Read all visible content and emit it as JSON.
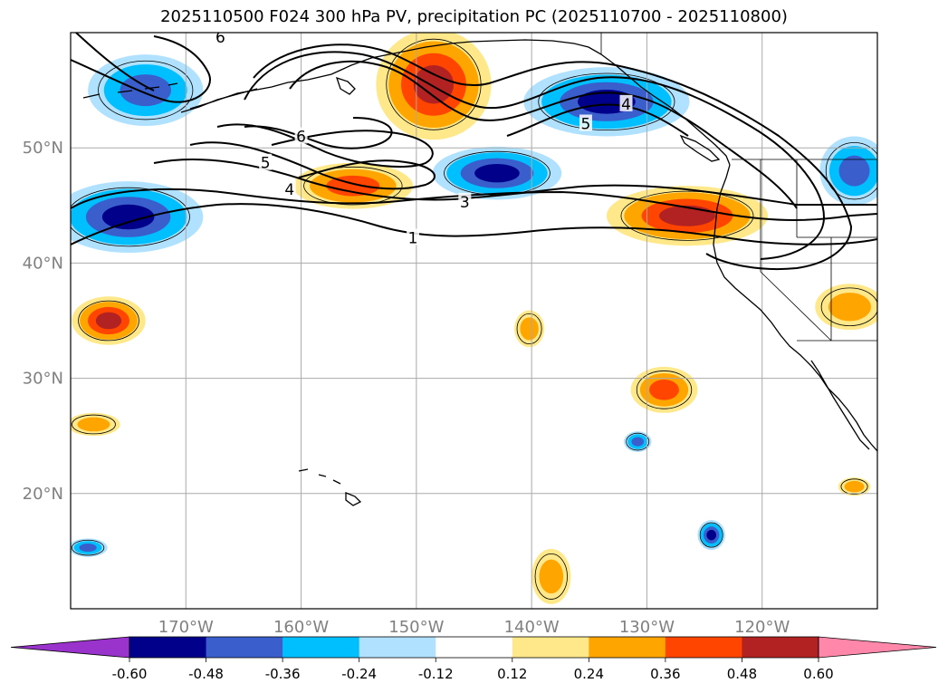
{
  "title": "2025110500 F024 300 hPa PV, precipitation PC (2025110700 - 2025110800)",
  "lat_labels": [
    {
      "lat": 50,
      "text": "50°N"
    },
    {
      "lat": 40,
      "text": "40°N"
    },
    {
      "lat": 30,
      "text": "30°N"
    },
    {
      "lat": 20,
      "text": "20°N"
    }
  ],
  "lon_labels": [
    {
      "lon": -170,
      "text": "170°W"
    },
    {
      "lon": -160,
      "text": "160°W"
    },
    {
      "lon": -150,
      "text": "150°W"
    },
    {
      "lon": -140,
      "text": "140°W"
    },
    {
      "lon": -130,
      "text": "130°W"
    },
    {
      "lon": -120,
      "text": "120°W"
    }
  ],
  "extent": {
    "lon_min": -180,
    "lon_max": -110,
    "lat_min": 10,
    "lat_max": 60
  },
  "colorbar": {
    "levels": [
      "-0.60",
      "-0.48",
      "-0.36",
      "-0.24",
      "-0.12",
      "0.12",
      "0.24",
      "0.36",
      "0.48",
      "0.60"
    ],
    "colors": [
      "#9a33cc",
      "#00008b",
      "#3a5fcd",
      "#00bfff",
      "#b0e2ff",
      "#ffffff",
      "#ffe88a",
      "#ffa500",
      "#ff4500",
      "#b22222",
      "#ff88aa"
    ]
  },
  "pv_contour_labels": [
    {
      "text": "1",
      "lon": -150.3,
      "lat": 42.2
    },
    {
      "text": "3",
      "lon": -145.8,
      "lat": 45.3
    },
    {
      "text": "4",
      "lon": -161.0,
      "lat": 46.4
    },
    {
      "text": "5",
      "lon": -163.1,
      "lat": 48.7
    },
    {
      "text": "6",
      "lon": -160.0,
      "lat": 51.0
    },
    {
      "text": "5",
      "lon": -135.3,
      "lat": 52.1
    },
    {
      "text": "4",
      "lon": -131.8,
      "lat": 53.8
    },
    {
      "text": "6",
      "lon": -167.0,
      "lat": 59.6
    }
  ],
  "precip_regions": [
    {
      "name": "aleutian-west-negative",
      "lon": -173.5,
      "lat": 55.0,
      "rx": 5.0,
      "ry": 3.1,
      "level": -0.36
    },
    {
      "name": "pacific-west-negative",
      "lon": -175.0,
      "lat": 44.0,
      "rx": 6.5,
      "ry": 3.1,
      "level": -0.48
    },
    {
      "name": "gulf-alaska-positive",
      "lon": -148.5,
      "lat": 55.5,
      "rx": 5.0,
      "ry": 4.8,
      "level": 0.48
    },
    {
      "name": "mid-pacific-positive",
      "lon": -155.5,
      "lat": 46.7,
      "rx": 5.2,
      "ry": 2.0,
      "level": 0.36
    },
    {
      "name": "mid-pacific-negative",
      "lon": -143.0,
      "lat": 47.8,
      "rx": 5.6,
      "ry": 2.3,
      "level": -0.48
    },
    {
      "name": "gulf-alaska-negative",
      "lon": -133.5,
      "lat": 54.0,
      "rx": 7.2,
      "ry": 3.0,
      "level": -0.48
    },
    {
      "name": "oregon-offshore-positive",
      "lon": -126.5,
      "lat": 44.1,
      "rx": 7.0,
      "ry": 2.6,
      "level": 0.48
    },
    {
      "name": "subtropical-west-positive",
      "lon": -176.7,
      "lat": 35.0,
      "rx": 3.2,
      "ry": 2.1,
      "level": 0.48
    },
    {
      "name": "subtropical-center-positive",
      "lon": -140.2,
      "lat": 34.3,
      "rx": 1.3,
      "ry": 1.6,
      "level": 0.24
    },
    {
      "name": "hawaii-northeast-positive",
      "lon": -128.5,
      "lat": 29.0,
      "rx": 2.9,
      "ry": 2.0,
      "level": 0.36
    },
    {
      "name": "tropical-east-negative",
      "lon": -130.8,
      "lat": 24.5,
      "rx": 1.2,
      "ry": 0.9,
      "level": -0.36
    },
    {
      "name": "baja-offshore-positive",
      "lon": -112.0,
      "lat": 20.6,
      "rx": 1.4,
      "ry": 0.8,
      "level": 0.24
    },
    {
      "name": "california-positive",
      "lon": -112.4,
      "lat": 36.2,
      "rx": 3.0,
      "ry": 2.0,
      "level": 0.24
    },
    {
      "name": "tropical-south-negative",
      "lon": -124.4,
      "lat": 16.4,
      "rx": 1.2,
      "ry": 1.3,
      "level": -0.48
    },
    {
      "name": "tropical-southwest-positive",
      "lon": -138.3,
      "lat": 12.8,
      "rx": 1.7,
      "ry": 2.4,
      "level": 0.24
    },
    {
      "name": "tropical-far-west-negative",
      "lon": -178.5,
      "lat": 15.3,
      "rx": 1.7,
      "ry": 0.8,
      "level": -0.36
    },
    {
      "name": "subtropical-far-west-positive",
      "lon": -178.0,
      "lat": 26.0,
      "rx": 2.3,
      "ry": 1.0,
      "level": 0.24
    },
    {
      "name": "canada-interior-negative",
      "lon": -112.0,
      "lat": 48.0,
      "rx": 3.0,
      "ry": 3.0,
      "level": -0.36
    }
  ]
}
